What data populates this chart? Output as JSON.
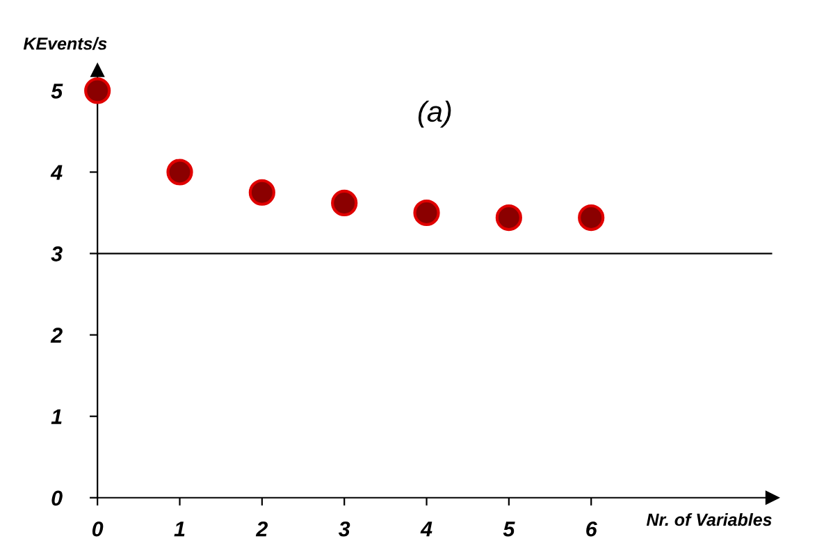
{
  "chart_data": {
    "type": "scatter",
    "title": "(a)",
    "xlabel": "Nr. of Variables",
    "ylabel": "KEvents/s",
    "x": [
      0,
      1,
      2,
      3,
      4,
      5,
      6
    ],
    "series": [
      {
        "color": "#8b0000",
        "values": [
          5.0,
          4.0,
          3.75,
          3.62,
          3.5,
          3.44,
          3.44
        ]
      }
    ],
    "xlim": [
      0,
      8.2
    ],
    "ylim": [
      0,
      5.25
    ],
    "xticks": [
      0,
      1,
      2,
      3,
      4,
      5,
      6
    ],
    "yticks": [
      0,
      1,
      2,
      3,
      4,
      5
    ],
    "ref_lines": [
      {
        "axis": "y",
        "value": 3,
        "color": "#000000"
      }
    ],
    "marker": "circle",
    "grid": false,
    "legend": false
  }
}
